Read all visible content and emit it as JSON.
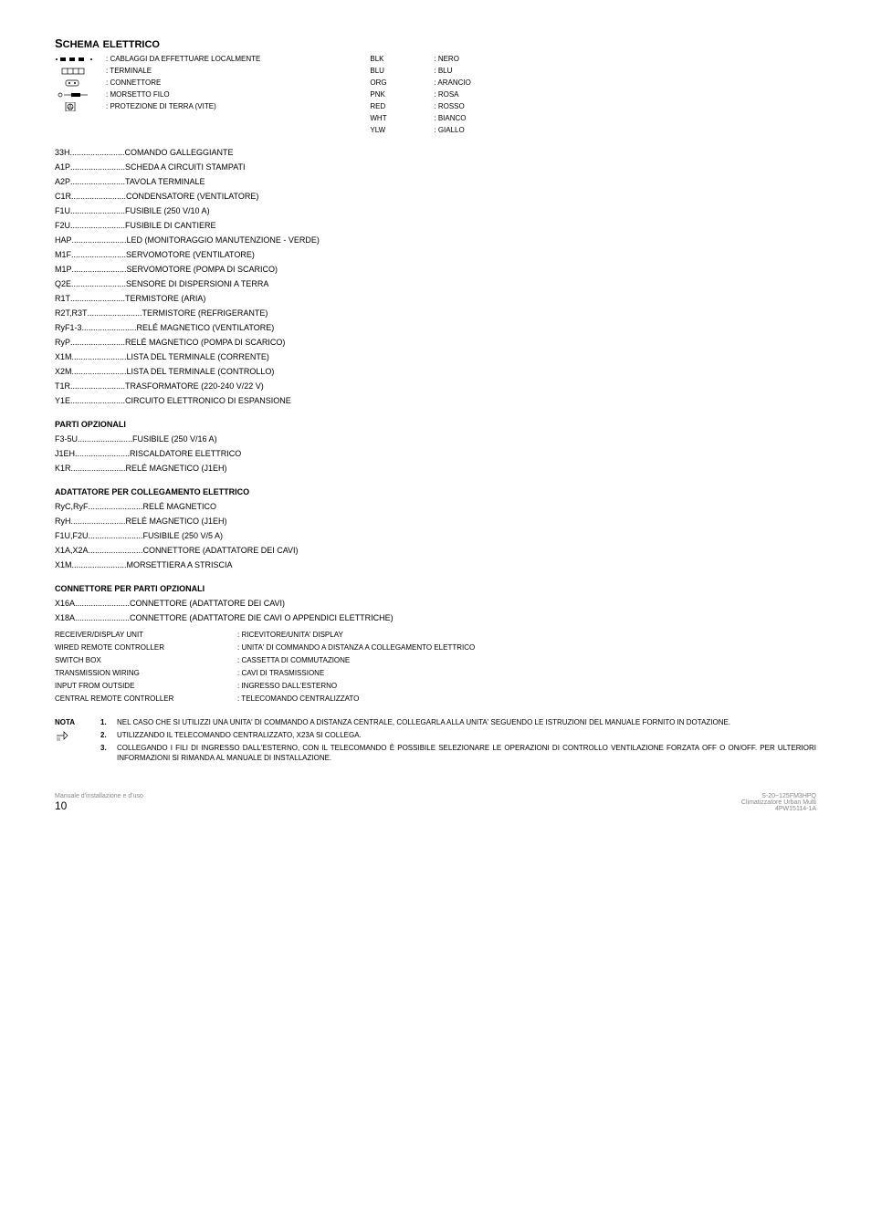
{
  "title": {
    "main": "S",
    "rest": "CHEMA",
    "space": " ",
    "main2": "",
    "rest2": "ELETTRICO"
  },
  "legend_symbols": [
    {
      "label": ": CABLAGGI DA EFFETTUARE LOCALMENTE"
    },
    {
      "label": ": TERMINALE"
    },
    {
      "label": ": CONNETTORE"
    },
    {
      "label": ": MORSETTO FILO"
    },
    {
      "label": ": PROTEZIONE DI TERRA (VITE)"
    }
  ],
  "colors": [
    {
      "code": "BLK",
      "name": ": NERO"
    },
    {
      "code": "BLU",
      "name": ": BLU"
    },
    {
      "code": "ORG",
      "name": ": ARANCIO"
    },
    {
      "code": "PNK",
      "name": ": ROSA"
    },
    {
      "code": "RED",
      "name": ": ROSSO"
    },
    {
      "code": "WHT",
      "name": ": BIANCO"
    },
    {
      "code": "YLW",
      "name": ": GIALLO"
    }
  ],
  "defs_main": [
    {
      "k": "33H",
      "v": "COMANDO GALLEGGIANTE"
    },
    {
      "k": "A1P",
      "v": "SCHEDA A CIRCUITI STAMPATI"
    },
    {
      "k": "A2P",
      "v": "TAVOLA TERMINALE"
    },
    {
      "k": "C1R",
      "v": "CONDENSATORE (VENTILATORE)"
    },
    {
      "k": "F1U",
      "v": "FUSIBILE (250 V/10 A)"
    },
    {
      "k": "F2U",
      "v": "FUSIBILE DI CANTIERE"
    },
    {
      "k": "HAP",
      "v": "LED (MONITORAGGIO MANUTENZIONE - VERDE)"
    },
    {
      "k": "M1F",
      "v": "SERVOMOTORE (VENTILATORE)"
    },
    {
      "k": "M1P",
      "v": "SERVOMOTORE (POMPA DI SCARICO)"
    },
    {
      "k": "Q2E",
      "v": "SENSORE DI DISPERSIONI A TERRA"
    },
    {
      "k": "R1T",
      "v": "TERMISTORE (ARIA)"
    },
    {
      "k": "R2T,R3T",
      "v": "TERMISTORE (REFRIGERANTE)"
    },
    {
      "k": "RyF1-3",
      "v": "RELÉ MAGNETICO (VENTILATORE)"
    },
    {
      "k": "RyP",
      "v": "RELÉ MAGNETICO (POMPA DI SCARICO)"
    },
    {
      "k": "X1M",
      "v": "LISTA DEL TERMINALE (CORRENTE)"
    },
    {
      "k": "X2M",
      "v": "LISTA DEL TERMINALE (CONTROLLO)"
    },
    {
      "k": "T1R",
      "v": "TRASFORMATORE (220-240 V/22 V)"
    },
    {
      "k": "Y1E",
      "v": "CIRCUITO ELETTRONICO DI ESPANSIONE"
    }
  ],
  "heading_opz": "PARTI OPZIONALI",
  "defs_opz": [
    {
      "k": "F3-5U",
      "v": "FUSIBILE (250 V/16 A)"
    },
    {
      "k": "J1EH",
      "v": "RISCALDATORE ELETTRICO"
    },
    {
      "k": "K1R",
      "v": "RELÉ MAGNETICO (J1EH)"
    }
  ],
  "heading_adatt": "ADATTATORE PER COLLEGAMENTO ELETTRICO",
  "defs_adatt": [
    {
      "k": "RyC,RyF",
      "v": "RELÉ MAGNETICO"
    },
    {
      "k": "RyH",
      "v": "RELÉ MAGNETICO (J1EH)"
    },
    {
      "k": "F1U,F2U",
      "v": "FUSIBILE (250 V/5 A)"
    },
    {
      "k": "X1A,X2A",
      "v": "CONNETTORE (ADATTATORE DEI CAVI)"
    },
    {
      "k": "X1M",
      "v": "MORSETTIERA A STRISCIA"
    }
  ],
  "heading_conn": "CONNETTORE PER PARTI OPZIONALI",
  "defs_conn": [
    {
      "k": "X16A",
      "v": "CONNETTORE (ADATTATORE DEI CAVI)"
    },
    {
      "k": "X18A",
      "v": "CONNETTORE (ADATTATORE DIE CAVI O APPENDICI ELETTRICHE)"
    }
  ],
  "twocol": [
    {
      "l": "RECEIVER/DISPLAY UNIT",
      "r": ": RICEVITORE/UNITA' DISPLAY"
    },
    {
      "l": "WIRED REMOTE CONTROLLER",
      "r": ": UNITA' DI COMMANDO A DISTANZA A COLLEGAMENTO ELETTRICO"
    },
    {
      "l": "SWITCH BOX",
      "r": ": CASSETTA DI COMMUTAZIONE"
    },
    {
      "l": "TRANSMISSION WIRING",
      "r": ": CAVI DI TRASMISSIONE"
    },
    {
      "l": "INPUT FROM OUTSIDE",
      "r": ": INGRESSO DALL'ESTERNO"
    },
    {
      "l": "CENTRAL REMOTE CONTROLLER",
      "r": ": TELECOMANDO CENTRALIZZATO"
    }
  ],
  "nota_label": "NOTA",
  "notes": [
    {
      "n": "1.",
      "t": "NEL CASO CHE SI UTILIZZI UNA UNITA' DI COMMANDO A DISTANZA CENTRALE, COLLEGARLA ALLA UNITA' SEGUENDO LE ISTRUZIONI DEL MANUALE FORNITO IN DOTAZIONE."
    },
    {
      "n": "2.",
      "t": "UTILIZZANDO IL TELECOMANDO CENTRALIZZATO, X23A SI COLLEGA."
    },
    {
      "n": "3.",
      "t": "COLLEGANDO I FILI DI INGRESSO DALL'ESTERNO, CON IL TELECOMANDO È POSSIBILE SELEZIONARE LE OPERAZIONI DI CONTROLLO VENTILAZIONE FORZATA OFF O ON/OFF. PER ULTERIORI INFORMAZIONI SI RIMANDA AL MANUALE DI INSTALLAZIONE."
    }
  ],
  "footer": {
    "left_line1": "Manuale d'installazione e d'uso",
    "left_page": "10",
    "right_line1": "S-20~125FM3HPQ",
    "right_line2": "Climatizzatore Urban Multi",
    "right_line3": "4PW15114-1A"
  }
}
